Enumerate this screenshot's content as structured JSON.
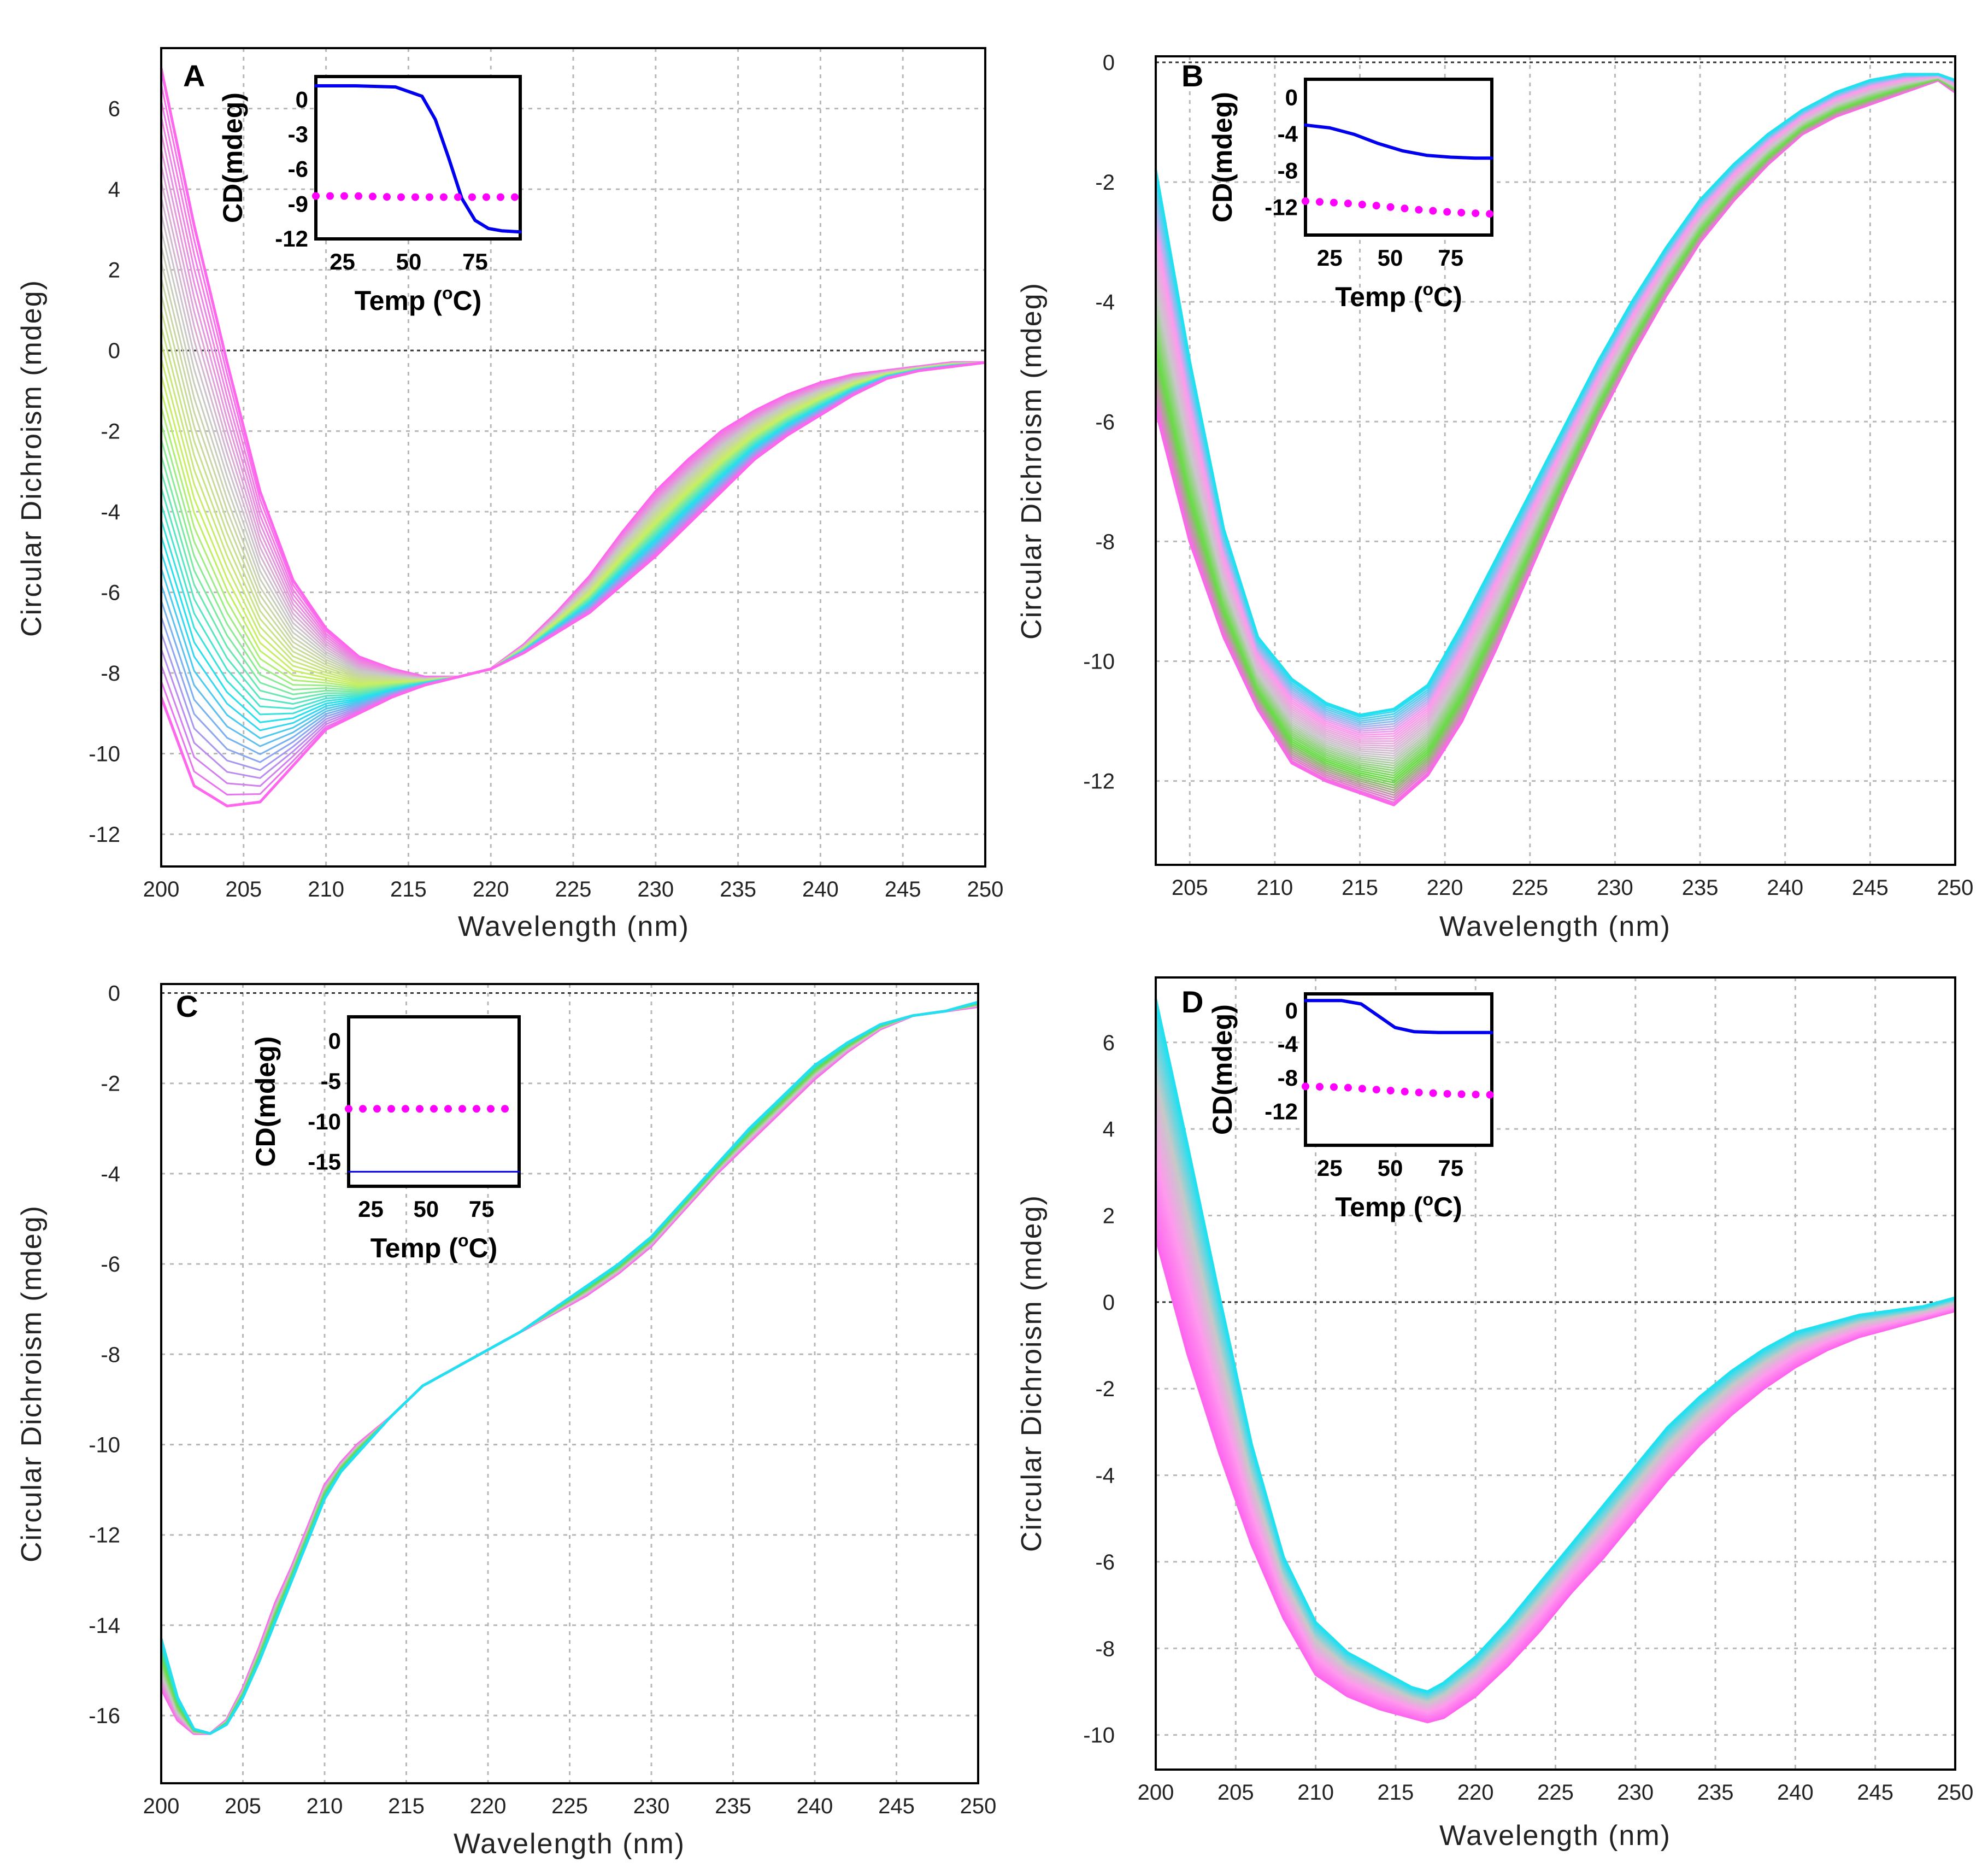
{
  "colors": {
    "magenta": "#ff66ee",
    "gray": "#c8c8c8",
    "lime": "#c8f060",
    "green": "#66dd44",
    "cyan": "#22e0f0",
    "pink": "#ff99ee",
    "inset_native": "#0000ee",
    "inset_reference": "#ff00ff"
  },
  "chart_data": [
    {
      "type": "line",
      "panel_label": "A",
      "xlabel": "Wavelength (nm)",
      "ylabel": "Circular Dichroism (mdeg)",
      "xlim": [
        200,
        250
      ],
      "ylim": [
        -12.8,
        7.5
      ],
      "x_ticks": [
        "200",
        "205",
        "210",
        "215",
        "220",
        "225",
        "230",
        "235",
        "240",
        "245",
        "250"
      ],
      "y_ticks": [
        6,
        4,
        2,
        0,
        -2,
        -4,
        -6,
        -8,
        -10,
        -12
      ],
      "grid": true,
      "series_count": 40,
      "series_color_order": [
        "magenta",
        "gray",
        "lime",
        "cyan",
        "magenta"
      ],
      "start_curve": {
        "x": [
          200,
          202,
          204,
          206,
          208,
          210,
          212,
          214,
          216,
          218,
          220,
          222,
          224,
          226,
          228,
          230,
          232,
          234,
          236,
          238,
          240,
          242,
          244,
          246,
          248,
          250
        ],
        "y": [
          7.0,
          3.1,
          -0.3,
          -3.5,
          -5.7,
          -6.9,
          -7.6,
          -7.9,
          -8.1,
          -8.1,
          -7.9,
          -7.3,
          -6.5,
          -5.6,
          -4.5,
          -3.5,
          -2.7,
          -2.0,
          -1.5,
          -1.1,
          -0.8,
          -0.6,
          -0.5,
          -0.4,
          -0.3,
          -0.3
        ]
      },
      "end_curve": {
        "x": [
          200,
          202,
          204,
          206,
          208,
          210,
          212,
          214,
          216,
          218,
          220,
          222,
          224,
          226,
          228,
          230,
          232,
          234,
          236,
          238,
          240,
          242,
          244,
          246,
          248,
          250
        ],
        "y": [
          -8.6,
          -10.8,
          -11.3,
          -11.2,
          -10.3,
          -9.4,
          -9.0,
          -8.6,
          -8.3,
          -8.1,
          -7.9,
          -7.5,
          -7.0,
          -6.5,
          -5.8,
          -5.1,
          -4.3,
          -3.5,
          -2.7,
          -2.1,
          -1.6,
          -1.1,
          -0.7,
          -0.5,
          -0.4,
          -0.3
        ]
      },
      "inset": {
        "xlabel": "Temp (",
        "xlabel_sup": "o",
        "xlabel_tail": "C)",
        "ylabel": "CD(mdeg)",
        "xlim": [
          15,
          92
        ],
        "ylim": [
          -12,
          2
        ],
        "x_ticks": [
          25,
          50,
          75
        ],
        "y_ticks": [
          0,
          -3,
          -6,
          -9,
          -12
        ],
        "y_tick_labels": [
          "0",
          "-3",
          "-6",
          "-9",
          "-12"
        ],
        "series": [
          {
            "style": "solid",
            "color": "inset_native",
            "x": [
              15,
              30,
              45,
              55,
              60,
              65,
              70,
              75,
              80,
              85,
              92
            ],
            "y": [
              1.2,
              1.2,
              1.1,
              0.3,
              -1.7,
              -5.0,
              -8.5,
              -10.4,
              -11.1,
              -11.3,
              -11.4
            ]
          },
          {
            "style": "dotted",
            "color": "inset_reference",
            "x": [
              15,
              30,
              45,
              60,
              75,
              92
            ],
            "y": [
              -8.3,
              -8.3,
              -8.4,
              -8.4,
              -8.4,
              -8.4
            ]
          }
        ]
      }
    },
    {
      "type": "line",
      "panel_label": "B",
      "xlabel": "Wavelength (nm)",
      "ylabel": "Circular Dichroism (mdeg)",
      "xlim": [
        203,
        250
      ],
      "ylim": [
        -13.4,
        0.1
      ],
      "x_ticks": [
        "205",
        "210",
        "215",
        "220",
        "225",
        "230",
        "235",
        "240",
        "245",
        "250"
      ],
      "y_ticks": [
        0,
        -2,
        -4,
        -6,
        -8,
        -10,
        -12
      ],
      "grid": true,
      "series_count": 40,
      "series_color_order": [
        "magenta",
        "green",
        "gray",
        "pink",
        "cyan"
      ],
      "start_curve": {
        "x": [
          203,
          205,
          207,
          209,
          211,
          213,
          215,
          217,
          219,
          221,
          223,
          225,
          227,
          229,
          231,
          233,
          235,
          237,
          239,
          241,
          243,
          245,
          247,
          249,
          250
        ],
        "y": [
          -5.8,
          -8.0,
          -9.6,
          -10.8,
          -11.7,
          -12.0,
          -12.2,
          -12.4,
          -11.9,
          -11.0,
          -9.8,
          -8.5,
          -7.2,
          -6.0,
          -4.9,
          -3.9,
          -3.0,
          -2.3,
          -1.7,
          -1.2,
          -0.9,
          -0.7,
          -0.5,
          -0.3,
          -0.5
        ]
      },
      "end_curve": {
        "x": [
          203,
          205,
          207,
          209,
          211,
          213,
          215,
          217,
          219,
          221,
          223,
          225,
          227,
          229,
          231,
          233,
          235,
          237,
          239,
          241,
          243,
          245,
          247,
          249,
          250
        ],
        "y": [
          -1.8,
          -5.0,
          -7.8,
          -9.6,
          -10.3,
          -10.7,
          -10.9,
          -10.8,
          -10.4,
          -9.4,
          -8.3,
          -7.2,
          -6.1,
          -5.0,
          -4.0,
          -3.1,
          -2.3,
          -1.7,
          -1.2,
          -0.8,
          -0.5,
          -0.3,
          -0.2,
          -0.2,
          -0.3
        ]
      },
      "inset": {
        "xlabel": "Temp (",
        "xlabel_sup": "o",
        "xlabel_tail": "C)",
        "ylabel": "CD(mdeg)",
        "xlim": [
          15,
          92
        ],
        "ylim": [
          -15,
          2
        ],
        "x_ticks": [
          25,
          50,
          75
        ],
        "y_ticks": [
          0,
          -4,
          -8,
          -12
        ],
        "y_tick_labels": [
          "0",
          "-4",
          "-8",
          "-12"
        ],
        "series": [
          {
            "style": "solid",
            "color": "inset_native",
            "x": [
              15,
              25,
              35,
              45,
              55,
              65,
              75,
              85,
              92
            ],
            "y": [
              -3.0,
              -3.3,
              -4.0,
              -5.0,
              -5.8,
              -6.3,
              -6.5,
              -6.6,
              -6.6
            ]
          },
          {
            "style": "dotted",
            "color": "inset_reference",
            "x": [
              15,
              30,
              45,
              60,
              75,
              92
            ],
            "y": [
              -11.3,
              -11.5,
              -11.8,
              -12.2,
              -12.5,
              -12.7
            ]
          }
        ]
      }
    },
    {
      "type": "line",
      "panel_label": "C",
      "xlabel": "Wavelength (nm)",
      "ylabel": "Circular Dichroism (mdeg)",
      "xlim": [
        200,
        250
      ],
      "ylim": [
        -17.5,
        0.2
      ],
      "x_ticks": [
        "200",
        "205",
        "210",
        "215",
        "220",
        "225",
        "230",
        "235",
        "240",
        "245",
        "250"
      ],
      "y_ticks": [
        0,
        -2,
        -4,
        -6,
        -8,
        -10,
        -12,
        -14,
        -16
      ],
      "grid": true,
      "series_count": 40,
      "series_color_order": [
        "magenta",
        "gray",
        "green",
        "cyan"
      ],
      "start_curve": {
        "x": [
          200,
          201,
          202,
          203,
          204,
          205,
          206,
          207,
          208,
          209,
          210,
          211,
          212,
          214,
          216,
          218,
          220,
          222,
          224,
          226,
          228,
          230,
          232,
          234,
          236,
          238,
          240,
          242,
          244,
          246,
          248,
          250
        ],
        "y": [
          -15.4,
          -16.1,
          -16.4,
          -16.4,
          -16.1,
          -15.4,
          -14.5,
          -13.5,
          -12.7,
          -11.8,
          -10.9,
          -10.4,
          -10.0,
          -9.4,
          -8.7,
          -8.3,
          -7.9,
          -7.5,
          -7.1,
          -6.7,
          -6.2,
          -5.6,
          -4.8,
          -4.0,
          -3.3,
          -2.6,
          -1.9,
          -1.3,
          -0.8,
          -0.5,
          -0.4,
          -0.3
        ]
      },
      "end_curve": {
        "x": [
          200,
          201,
          202,
          203,
          204,
          205,
          206,
          207,
          208,
          209,
          210,
          211,
          212,
          214,
          216,
          218,
          220,
          222,
          224,
          226,
          228,
          230,
          232,
          234,
          236,
          238,
          240,
          242,
          244,
          246,
          248,
          250
        ],
        "y": [
          -14.3,
          -15.6,
          -16.3,
          -16.4,
          -16.2,
          -15.6,
          -14.8,
          -13.9,
          -13.0,
          -12.1,
          -11.2,
          -10.6,
          -10.2,
          -9.4,
          -8.7,
          -8.3,
          -7.9,
          -7.5,
          -7.0,
          -6.5,
          -6.0,
          -5.4,
          -4.6,
          -3.8,
          -3.0,
          -2.3,
          -1.6,
          -1.1,
          -0.7,
          -0.5,
          -0.4,
          -0.2
        ]
      },
      "inset": {
        "xlabel": "Temp (",
        "xlabel_sup": "o",
        "xlabel_tail": "C)",
        "ylabel": "CD(mdeg)",
        "xlim": [
          15,
          92
        ],
        "ylim": [
          -18,
          3
        ],
        "x_ticks": [
          25,
          50,
          75
        ],
        "y_ticks": [
          0,
          -5,
          -10,
          -15
        ],
        "y_tick_labels": [
          "0",
          "-5",
          "-10",
          "-15"
        ],
        "series": [
          {
            "style": "solid",
            "color": "inset_native",
            "x": [
              15,
              92
            ],
            "y": [
              -16.2,
              -16.2
            ]
          },
          {
            "style": "dotted",
            "color": "inset_reference",
            "x": [
              15,
              50,
              92
            ],
            "y": [
              -8.4,
              -8.4,
              -8.4
            ]
          }
        ]
      }
    },
    {
      "type": "line",
      "panel_label": "D",
      "xlabel": "Wavelength (nm)",
      "ylabel": "Circular Dichroism (mdeg)",
      "xlim": [
        200,
        250
      ],
      "ylim": [
        -10.8,
        7.5
      ],
      "x_ticks": [
        "200",
        "205",
        "210",
        "215",
        "220",
        "225",
        "230",
        "235",
        "240",
        "245",
        "250"
      ],
      "y_ticks": [
        6,
        4,
        2,
        0,
        -2,
        -4,
        -6,
        -8,
        -10
      ],
      "grid": true,
      "series_count": 40,
      "series_color_order": [
        "magenta",
        "pink",
        "gray",
        "cyan"
      ],
      "start_curve": {
        "x": [
          200,
          202,
          204,
          206,
          208,
          210,
          212,
          214,
          216,
          217,
          218,
          220,
          222,
          224,
          226,
          228,
          230,
          232,
          234,
          236,
          238,
          240,
          242,
          244,
          246,
          248,
          250
        ],
        "y": [
          1.5,
          -1.2,
          -3.5,
          -5.6,
          -7.3,
          -8.6,
          -9.1,
          -9.4,
          -9.6,
          -9.7,
          -9.6,
          -9.1,
          -8.4,
          -7.6,
          -6.7,
          -5.9,
          -5.0,
          -4.1,
          -3.3,
          -2.6,
          -2.0,
          -1.5,
          -1.1,
          -0.8,
          -0.6,
          -0.4,
          -0.2
        ]
      },
      "end_curve": {
        "x": [
          200,
          202,
          204,
          206,
          208,
          210,
          212,
          214,
          216,
          217,
          218,
          220,
          222,
          224,
          226,
          228,
          230,
          232,
          234,
          236,
          238,
          240,
          242,
          244,
          246,
          248,
          250
        ],
        "y": [
          7.0,
          3.6,
          0.1,
          -3.3,
          -5.9,
          -7.4,
          -8.1,
          -8.5,
          -8.9,
          -9.0,
          -8.8,
          -8.2,
          -7.4,
          -6.5,
          -5.6,
          -4.7,
          -3.8,
          -2.9,
          -2.2,
          -1.6,
          -1.1,
          -0.7,
          -0.5,
          -0.3,
          -0.2,
          -0.1,
          0.1
        ]
      },
      "inset": {
        "xlabel": "Temp (",
        "xlabel_sup": "o",
        "xlabel_tail": "C)",
        "ylabel": "CD(mdeg)",
        "xlim": [
          15,
          92
        ],
        "ylim": [
          -16,
          2
        ],
        "x_ticks": [
          25,
          50,
          75
        ],
        "y_ticks": [
          0,
          -4,
          -8,
          -12
        ],
        "y_tick_labels": [
          "0",
          "-4",
          "-8",
          "-12"
        ],
        "series": [
          {
            "style": "solid",
            "color": "inset_native",
            "x": [
              15,
              30,
              38,
              45,
              52,
              60,
              70,
              80,
              92
            ],
            "y": [
              1.2,
              1.2,
              0.8,
              -0.6,
              -2.0,
              -2.5,
              -2.6,
              -2.6,
              -2.6
            ]
          },
          {
            "style": "dotted",
            "color": "inset_reference",
            "x": [
              15,
              30,
              45,
              60,
              75,
              92
            ],
            "y": [
              -9.0,
              -9.1,
              -9.4,
              -9.7,
              -9.9,
              -10.0
            ]
          }
        ]
      }
    }
  ]
}
